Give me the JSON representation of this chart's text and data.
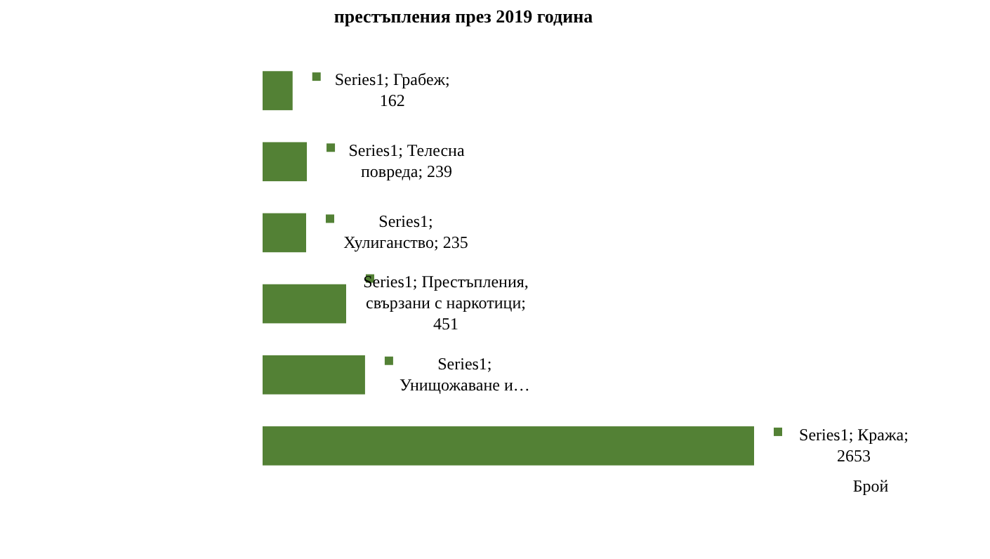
{
  "chart_data": {
    "type": "bar",
    "orientation": "horizontal",
    "title": "престъпления през 2019 година",
    "annotations": [
      "Брой"
    ],
    "categories": [
      null,
      null,
      null,
      null,
      null,
      null
    ],
    "values": [
      162,
      239,
      235,
      451,
      553,
      2653
    ],
    "value_labels": [
      "Series1; Грабеж;\n162",
      "Series1; Телесна\nповреда; 239",
      "Series1;\nХулиганство; 235",
      "Series1; Престъпления,\nсвързани с наркотици;\n451",
      "Series1;\nУнищожаване и…",
      "Series1; Кража;\n2653"
    ],
    "color": "#538135"
  }
}
